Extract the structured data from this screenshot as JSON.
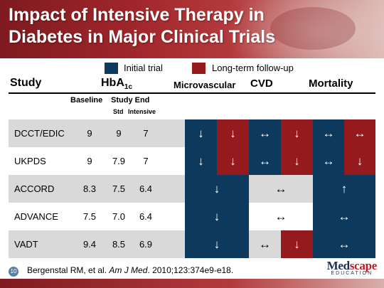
{
  "title_line1": "Impact of Intensive Therapy in",
  "title_line2": "Diabetes in Major Clinical Trials",
  "legend": {
    "initial": "Initial trial",
    "followup": "Long-term follow-up",
    "initial_color": "#0d3a5c",
    "followup_color": "#951a1d"
  },
  "headers": {
    "study": "Study",
    "hba1c": "HbA",
    "hba1c_sub": "1c",
    "microvascular": "Microvascular",
    "cvd": "CVD",
    "mortality": "Mortality",
    "baseline": "Baseline",
    "study_end": "Study End",
    "std": "Std",
    "intensive": "Intensive"
  },
  "rows": [
    {
      "study": "DCCT/EDIC",
      "baseline": "9",
      "std": "9",
      "intensive": "7",
      "micro": [
        "↓",
        "↓"
      ],
      "cvd": [
        "↔",
        "↓"
      ],
      "mort": [
        "↔",
        "↔"
      ]
    },
    {
      "study": "UKPDS",
      "baseline": "9",
      "std": "7.9",
      "intensive": "7",
      "micro": [
        "↓",
        "↓"
      ],
      "cvd": [
        "↔",
        "↓"
      ],
      "mort": [
        "↔",
        "↓"
      ]
    },
    {
      "study": "ACCORD",
      "baseline": "8.3",
      "std": "7.5",
      "intensive": "6.4",
      "micro": [
        "↓"
      ],
      "cvd": [
        "↔"
      ],
      "mort": [
        "↑"
      ]
    },
    {
      "study": "ADVANCE",
      "baseline": "7.5",
      "std": "7.0",
      "intensive": "6.4",
      "micro": [
        "↓"
      ],
      "cvd": [
        "↔"
      ],
      "mort": [
        "↔"
      ]
    },
    {
      "study": "VADT",
      "baseline": "9.4",
      "std": "8.5",
      "intensive": "6.9",
      "micro": [
        "↓"
      ],
      "cvd": [
        "↔",
        "↓"
      ],
      "mort": [
        "↔"
      ]
    }
  ],
  "footer": {
    "page": "10",
    "citation_pre": "Bergenstal RM, et al. ",
    "citation_journal": "Am J Med",
    "citation_post": ". 2010;123:374e9-e18.",
    "logo_med": "Med",
    "logo_scape": "scape",
    "logo_sub": "EDUCATION"
  }
}
